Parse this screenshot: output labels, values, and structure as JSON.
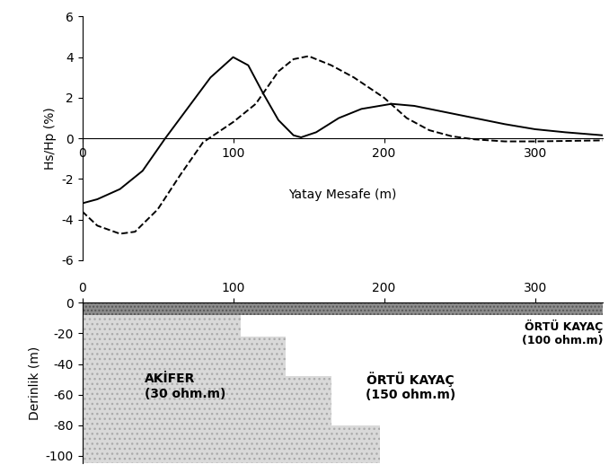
{
  "chart_data": [
    {
      "type": "line",
      "ylabel": "Hs/Hp (%)",
      "xlabel": "Yatay Mesafe (m)",
      "xlim": [
        0,
        345
      ],
      "xticks": [
        0,
        100,
        200,
        300
      ],
      "ylim": [
        -6,
        6
      ],
      "yticks": [
        -6,
        -4,
        -2,
        0,
        2,
        4,
        6
      ],
      "series": [
        {
          "color": "#000000",
          "line_style": "solid",
          "x": [
            0,
            10,
            25,
            40,
            55,
            70,
            85,
            100,
            110,
            120,
            130,
            140,
            145,
            155,
            170,
            185,
            205,
            220,
            240,
            260,
            280,
            300,
            320,
            345
          ],
          "values": [
            -3.2,
            -3.0,
            -2.5,
            -1.6,
            0.0,
            1.5,
            3.0,
            4.0,
            3.6,
            2.2,
            0.9,
            0.15,
            0.05,
            0.3,
            1.0,
            1.45,
            1.7,
            1.6,
            1.3,
            1.0,
            0.7,
            0.45,
            0.3,
            0.15
          ]
        },
        {
          "color": "#000000",
          "line_style": "dashed",
          "x": [
            0,
            10,
            25,
            35,
            50,
            65,
            80,
            90,
            100,
            115,
            130,
            140,
            150,
            165,
            180,
            200,
            215,
            230,
            245,
            260,
            280,
            300,
            345
          ],
          "values": [
            -3.6,
            -4.3,
            -4.7,
            -4.6,
            -3.5,
            -1.8,
            -0.2,
            0.3,
            0.8,
            1.7,
            3.3,
            3.9,
            4.05,
            3.6,
            3.0,
            2.0,
            1.0,
            0.4,
            0.1,
            -0.05,
            -0.15,
            -0.15,
            -0.1
          ]
        }
      ]
    },
    {
      "type": "section",
      "ylabel": "Derinlik (m)",
      "xlim": [
        0,
        345
      ],
      "xticks": [
        0,
        100,
        200,
        300
      ],
      "ylim": [
        -105,
        0
      ],
      "yticks": [
        -100,
        -80,
        -60,
        -40,
        -20,
        0
      ],
      "cover": {
        "name": "ÖRTÜ KAYAÇ",
        "label": "(100 ohm.m)",
        "top": 0,
        "bottom": -8,
        "color": "#8c8c8c"
      },
      "aquifer": {
        "name": "AKİFER",
        "label": "(30 ohm.m)",
        "color": "#d9d9d9",
        "blocks": [
          {
            "x_end": 105,
            "top": -8,
            "bottom": -22
          },
          {
            "x_end": 135,
            "top": -22,
            "bottom": -48
          },
          {
            "x_end": 165,
            "top": -48,
            "bottom": -80
          },
          {
            "x_end": 197,
            "top": -80,
            "bottom": -105
          }
        ]
      },
      "host": {
        "name": "ÖRTÜ KAYAÇ",
        "label": "(150 ohm.m)"
      }
    }
  ]
}
